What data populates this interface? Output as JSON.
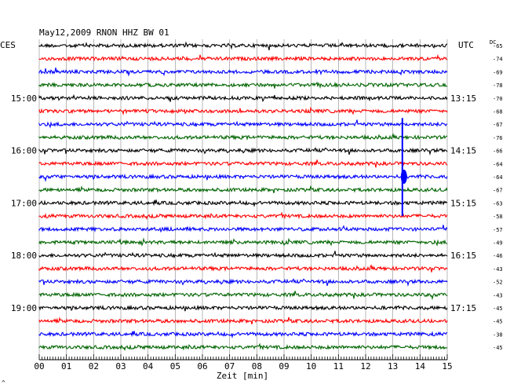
{
  "chart_data": {
    "type": "line",
    "title": "May12,2009   RNON HHZ BW 01",
    "left_axis_label": "CES",
    "right_axis_label": "UTC",
    "dc_label": "DC",
    "xlabel": "Zeit [min]",
    "x_ticks": [
      "00",
      "01",
      "02",
      "03",
      "04",
      "05",
      "06",
      "07",
      "08",
      "09",
      "10",
      "11",
      "12",
      "13",
      "14",
      "15"
    ],
    "xlim": [
      0,
      15
    ],
    "left_hour_labels": [
      {
        "row": 4,
        "text": "15:00"
      },
      {
        "row": 8,
        "text": "16:00"
      },
      {
        "row": 12,
        "text": "17:00"
      },
      {
        "row": 16,
        "text": "18:00"
      },
      {
        "row": 20,
        "text": "19:00"
      }
    ],
    "right_time_labels": [
      {
        "row": 4,
        "text": "13:15"
      },
      {
        "row": 8,
        "text": "14:15"
      },
      {
        "row": 12,
        "text": "15:15"
      },
      {
        "row": 16,
        "text": "16:15"
      },
      {
        "row": 20,
        "text": "17:15"
      }
    ],
    "trace_colors": [
      "#000000",
      "#ff0000",
      "#0000ff",
      "#006400"
    ],
    "dc_offsets": [
      "-65",
      "-74",
      "-69",
      "-78",
      "-70",
      "-68",
      "-67",
      "-76",
      "-66",
      "-64",
      "-64",
      "-67",
      "-63",
      "-58",
      "-57",
      "-49",
      "-46",
      "-43",
      "-52",
      "-43",
      "-45",
      "-45",
      "-38",
      "-45"
    ],
    "events": [
      {
        "row": 6,
        "minute": 13.35,
        "note": "large event"
      }
    ],
    "footer_mark": "^"
  }
}
